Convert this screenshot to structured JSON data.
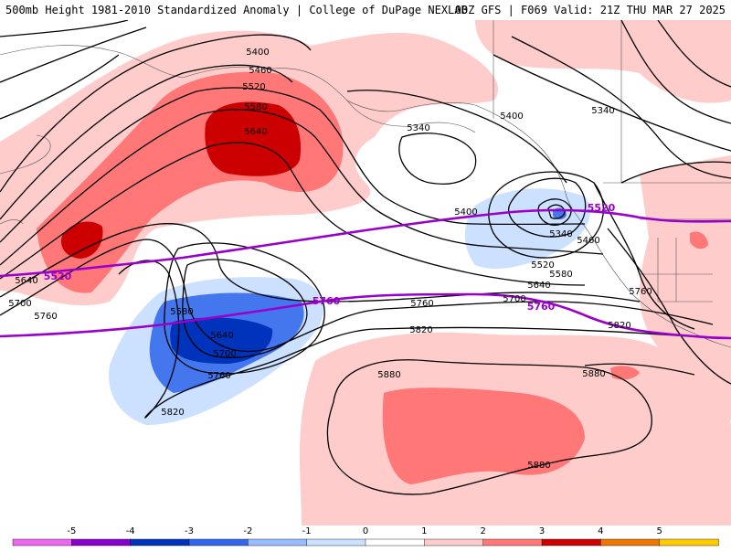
{
  "header": {
    "title_left": "500mb Height 1981-2010 Standardized Anomaly | College of DuPage NEXLAB",
    "title_right": "00Z GFS | F069 Valid: 21Z THU MAR 27 2025"
  },
  "colorbar": {
    "ticks": [
      "-5",
      "-4",
      "-3",
      "-2",
      "-1",
      "0",
      "1",
      "2",
      "3",
      "4",
      "5"
    ],
    "colors": [
      "#ee66ee",
      "#8800cc",
      "#0033bb",
      "#3366ee",
      "#99bbff",
      "#cce0ff",
      "#ffffff",
      "#ffcccc",
      "#ff7777",
      "#cc0000",
      "#ee7700",
      "#ffcc00"
    ]
  },
  "contour_labels": {
    "c5400_top": "5400",
    "c5460_top": "5460",
    "c5520_top": "5520",
    "c5580_top": "5580",
    "c5640_top": "5640",
    "c5340_mid": "5340",
    "c5400_gulf": "5400",
    "c5340_ne": "5340",
    "c5400_low": "5400",
    "c5340_low": "5340",
    "c5460_low": "5460",
    "c5520_low": "5520",
    "c5580_low": "5580",
    "c5640_low": "5640",
    "c5700_east": "5700",
    "c5760_coast": "5760",
    "c5820_east": "5820",
    "c5640_west": "5640",
    "c5700_west": "5700",
    "c5760_west": "5760",
    "c5580_trough": "5580",
    "c5640_trough": "5640",
    "c5700_trough": "5700",
    "c5760_trough": "5760",
    "c5820_trough": "5820",
    "c5760_mid": "5760",
    "c5820_mid": "5820",
    "c5880_w": "5880",
    "c5880_e": "5880",
    "c5880_s": "5880",
    "p5520_w": "5520",
    "p5520_e": "5520",
    "p5760_w": "5760",
    "p5760_e": "5760"
  },
  "colors": {
    "climo_contour": "#9900cc",
    "height_contour": "#000000",
    "pos_light": "#ffcccc",
    "pos_mid": "#ff7777",
    "pos_strong": "#cc0000",
    "neg_light": "#cce0ff",
    "neg_mid": "#4477ee",
    "neg_strong": "#0033bb"
  }
}
